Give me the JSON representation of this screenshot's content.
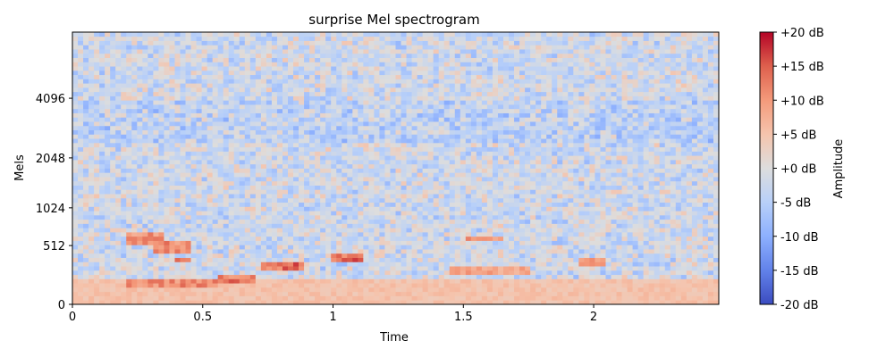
{
  "chart_data": {
    "type": "heatmap",
    "title": "surprise Mel spectrogram",
    "xlabel": "Time",
    "ylabel": "Mels",
    "x_ticks": [
      "0",
      "0.5",
      "1",
      "1.5",
      "2"
    ],
    "x_tick_values": [
      0,
      0.5,
      1,
      1.5,
      2
    ],
    "xlim": [
      0,
      2.48
    ],
    "y_ticks": [
      "0",
      "512",
      "1024",
      "2048",
      "4096"
    ],
    "y_tick_values": [
      0,
      512,
      1024,
      2048,
      4096
    ],
    "y_scale": "mel",
    "ylim": [
      0,
      8192
    ],
    "colormap": "coolwarm",
    "colorbar": {
      "label": "Amplitude",
      "ticks": [
        "+20 dB",
        "+15 dB",
        "+10 dB",
        "+5 dB",
        "+0 dB",
        "-5 dB",
        "-10 dB",
        "-15 dB",
        "-20 dB"
      ],
      "tick_values": [
        20,
        15,
        10,
        5,
        0,
        -5,
        -10,
        -15,
        -20
      ],
      "range": [
        -20,
        20
      ]
    },
    "hot_regions": [
      {
        "time": [
          0.2,
          0.35
        ],
        "mel_hz": [
          520,
          650
        ],
        "db": 12
      },
      {
        "time": [
          0.3,
          0.45
        ],
        "mel_hz": [
          430,
          560
        ],
        "db": 13
      },
      {
        "time": [
          0.4,
          0.45
        ],
        "mel_hz": [
          330,
          400
        ],
        "db": 14
      },
      {
        "time": [
          0.2,
          0.55
        ],
        "mel_hz": [
          130,
          190
        ],
        "db": 13
      },
      {
        "time": [
          0.55,
          0.7
        ],
        "mel_hz": [
          170,
          230
        ],
        "db": 15
      },
      {
        "time": [
          0.72,
          0.88
        ],
        "mel_hz": [
          270,
          330
        ],
        "db": 16
      },
      {
        "time": [
          1.0,
          1.12
        ],
        "mel_hz": [
          340,
          420
        ],
        "db": 16
      },
      {
        "time": [
          1.5,
          1.65
        ],
        "mel_hz": [
          560,
          640
        ],
        "db": 12
      },
      {
        "time": [
          1.45,
          1.75
        ],
        "mel_hz": [
          230,
          300
        ],
        "db": 10
      },
      {
        "time": [
          1.95,
          2.05
        ],
        "mel_hz": [
          300,
          380
        ],
        "db": 11
      },
      {
        "time": [
          0.0,
          2.48
        ],
        "mel_hz": [
          0,
          200
        ],
        "db": 6
      }
    ],
    "grid": false
  }
}
